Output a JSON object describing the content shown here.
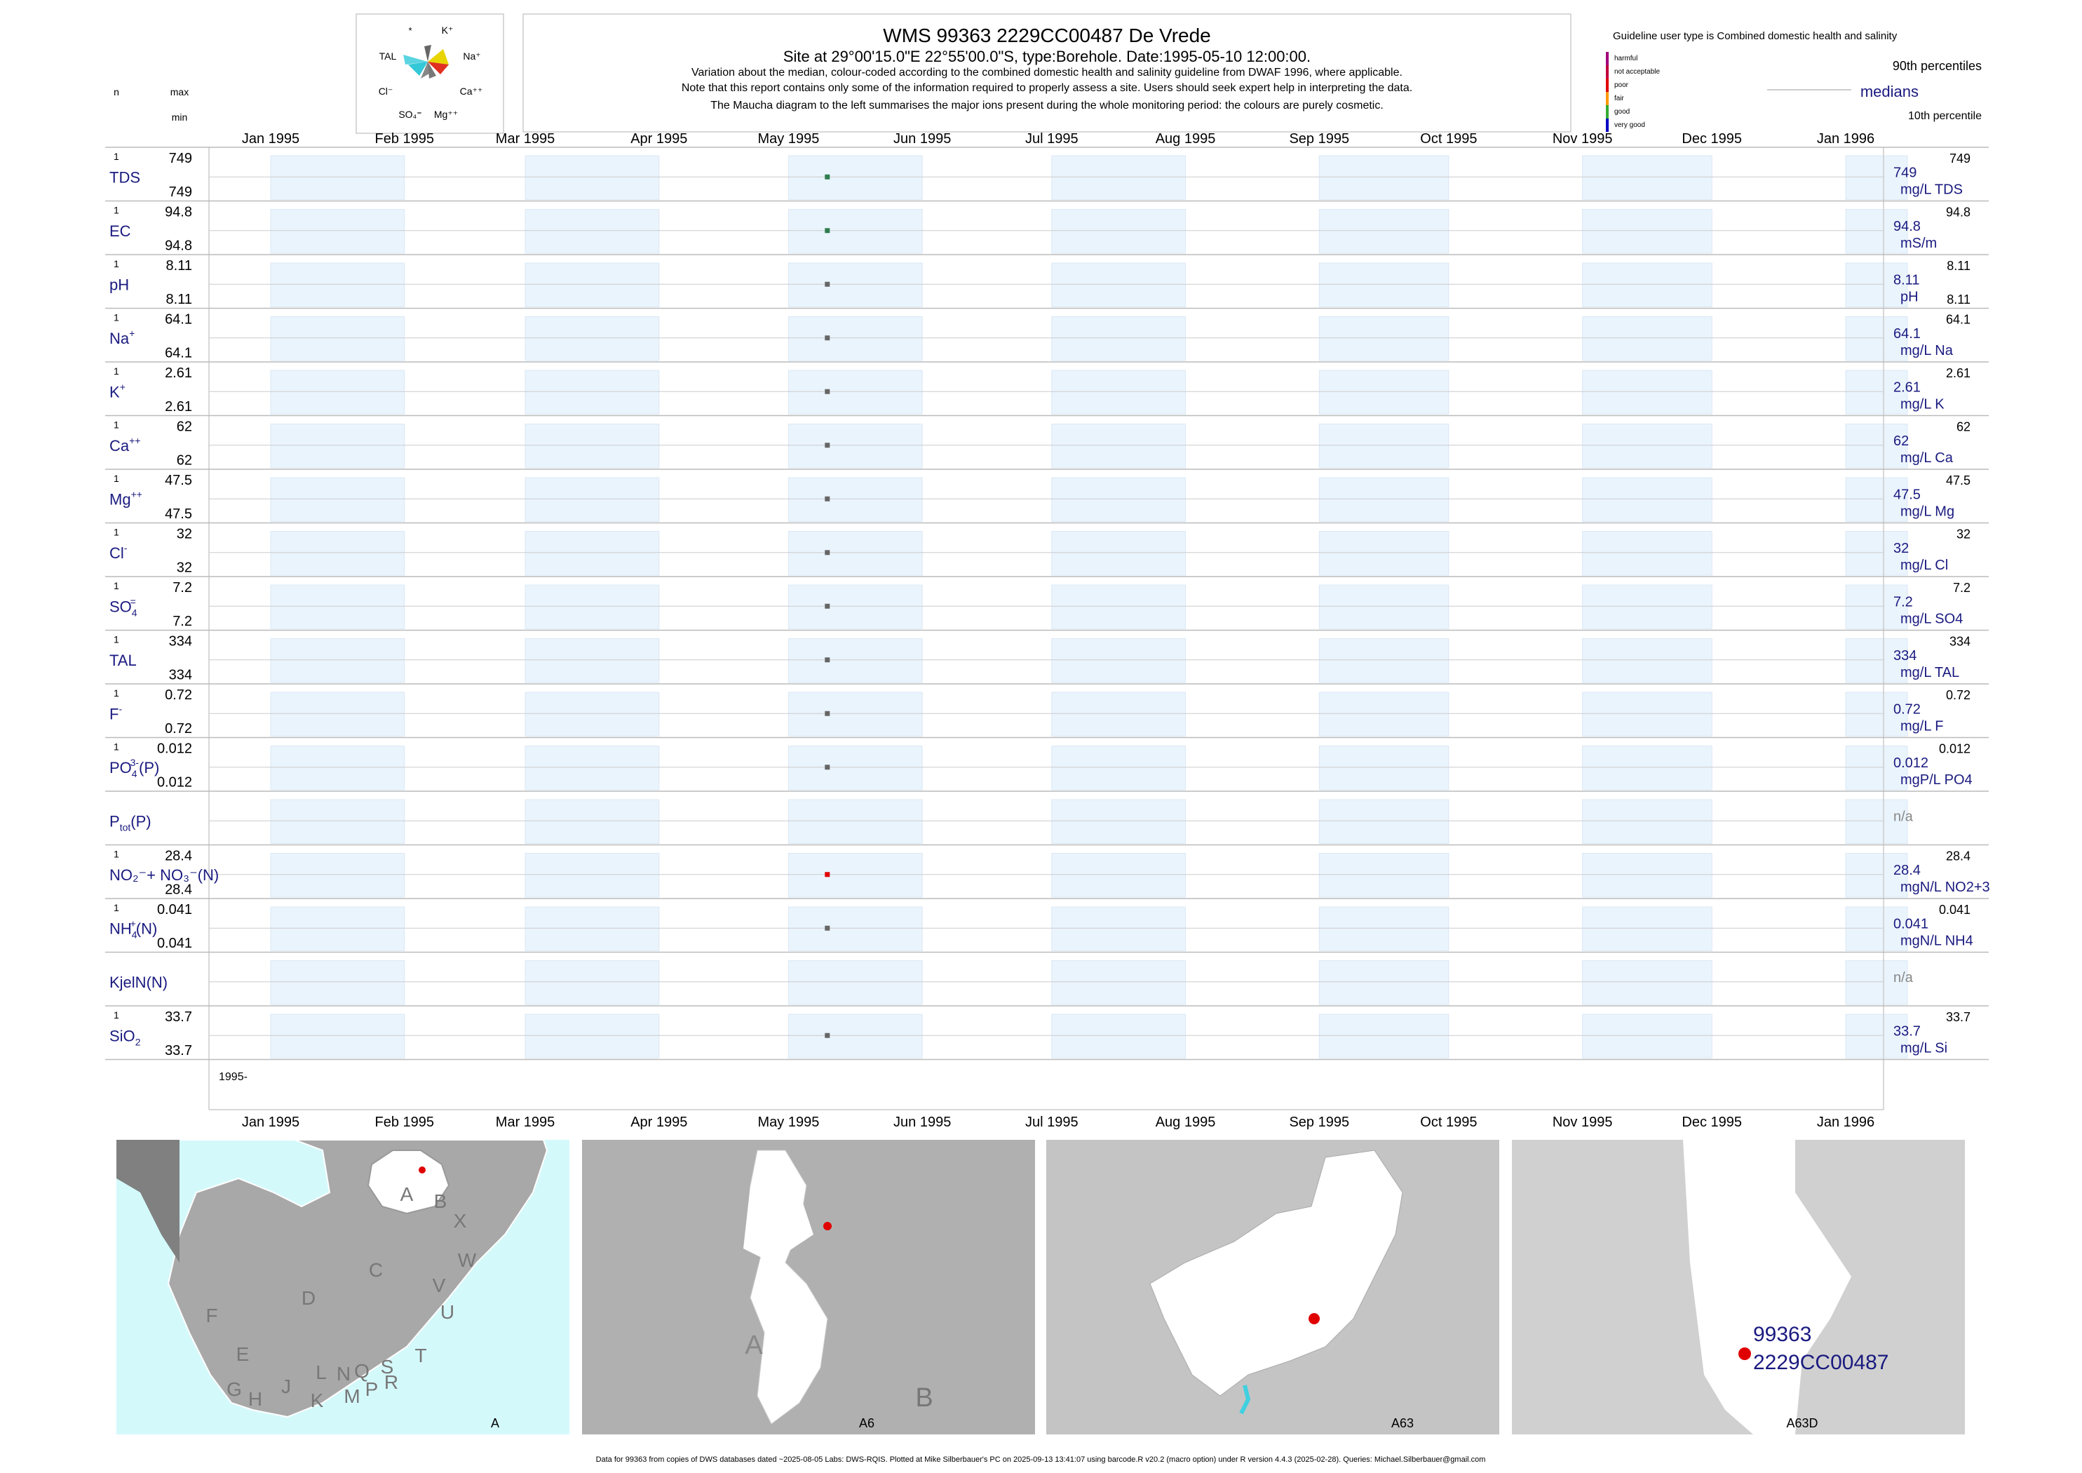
{
  "header": {
    "title": "WMS 99363 2229CC00487 De Vrede",
    "site_line": "Site at 29°00'15.0\"E 22°55'00.0\"S, type:Borehole. Date:1995-05-10 12:00:00.",
    "note1": "Variation about the median,  colour-coded according to the combined domestic health and salinity guideline from DWAF 1996, where applicable.",
    "note2": "Note that this report contains only some of the information required to properly assess a site. Users should seek expert help in interpreting the data.",
    "note3": "The Maucha diagram to the left summarises the major ions present during the whole monitoring period: the colours are purely cosmetic."
  },
  "left_header": {
    "n": "n",
    "max": "max",
    "min": "min"
  },
  "legend": {
    "guideline": "Guideline user type is Combined domestic health and salinity",
    "classes": [
      "harmful",
      "not acceptable",
      "poor",
      "fair",
      "good",
      "very good"
    ],
    "class_colors": [
      "#a0007a",
      "#c0003c",
      "#e00000",
      "#ff9900",
      "#33aa33",
      "#0000c0"
    ],
    "p90": "90th percentiles",
    "medians": "medians",
    "p10": "10th percentile"
  },
  "maucha": {
    "labels": [
      "*",
      "K⁺",
      "TAL",
      "Na⁺",
      "Cl⁻",
      "Ca⁺⁺",
      "SO₄⁼",
      "Mg⁺⁺"
    ]
  },
  "chart_data": {
    "type": "scatter",
    "x_ticks": [
      "Jan 1995",
      "Feb 1995",
      "Mar 1995",
      "Apr 1995",
      "May 1995",
      "Jun 1995",
      "Jul 1995",
      "Aug 1995",
      "Sep 1995",
      "Oct 1995",
      "Nov 1995",
      "Dec 1995",
      "Jan 1996"
    ],
    "xlim": [
      "1995-01-01",
      "1996-01-01"
    ],
    "bottom_year_label": "1995-",
    "series": [
      {
        "label": "TDS",
        "sup": "",
        "sub": "",
        "n": "1",
        "max": "749",
        "min": "749",
        "x": "1995-05-10",
        "y": 749,
        "median": "749",
        "unit": "mg/L TDS",
        "p90": "749",
        "p10": "",
        "color": "#2e7d4f"
      },
      {
        "label": "EC",
        "sup": "",
        "sub": "",
        "n": "1",
        "max": "94.8",
        "min": "94.8",
        "x": "1995-05-10",
        "y": 94.8,
        "median": "94.8",
        "unit": "mS/m",
        "p90": "94.8",
        "p10": "",
        "color": "#2e7d4f"
      },
      {
        "label": "pH",
        "sup": "",
        "sub": "",
        "n": "1",
        "max": "8.11",
        "min": "8.11",
        "x": "1995-05-10",
        "y": 8.11,
        "median": "8.11",
        "unit": "pH",
        "p90": "8.11",
        "p10": "8.11",
        "color": "#666666"
      },
      {
        "label": "Na",
        "sup": "+",
        "sub": "",
        "n": "1",
        "max": "64.1",
        "min": "64.1",
        "x": "1995-05-10",
        "y": 64.1,
        "median": "64.1",
        "unit": "mg/L Na",
        "p90": "64.1",
        "p10": "",
        "color": "#666666"
      },
      {
        "label": "K",
        "sup": "+",
        "sub": "",
        "n": "1",
        "max": "2.61",
        "min": "2.61",
        "x": "1995-05-10",
        "y": 2.61,
        "median": "2.61",
        "unit": "mg/L K",
        "p90": "2.61",
        "p10": "",
        "color": "#666666"
      },
      {
        "label": "Ca",
        "sup": "++",
        "sub": "",
        "n": "1",
        "max": "62",
        "min": "62",
        "x": "1995-05-10",
        "y": 62,
        "median": "62",
        "unit": "mg/L Ca",
        "p90": "62",
        "p10": "",
        "color": "#666666"
      },
      {
        "label": "Mg",
        "sup": "++",
        "sub": "",
        "n": "1",
        "max": "47.5",
        "min": "47.5",
        "x": "1995-05-10",
        "y": 47.5,
        "median": "47.5",
        "unit": "mg/L Mg",
        "p90": "47.5",
        "p10": "",
        "color": "#666666"
      },
      {
        "label": "Cl",
        "sup": "-",
        "sub": "",
        "n": "1",
        "max": "32",
        "min": "32",
        "x": "1995-05-10",
        "y": 32,
        "median": "32",
        "unit": "mg/L Cl",
        "p90": "32",
        "p10": "",
        "color": "#666666"
      },
      {
        "label": "SO",
        "sup": "=",
        "sub": "4",
        "n": "1",
        "max": "7.2",
        "min": "7.2",
        "x": "1995-05-10",
        "y": 7.2,
        "median": "7.2",
        "unit": "mg/L SO4",
        "p90": "7.2",
        "p10": "",
        "color": "#666666"
      },
      {
        "label": "TAL",
        "sup": "",
        "sub": "",
        "n": "1",
        "max": "334",
        "min": "334",
        "x": "1995-05-10",
        "y": 334,
        "median": "334",
        "unit": "mg/L TAL",
        "p90": "334",
        "p10": "",
        "color": "#666666"
      },
      {
        "label": "F",
        "sup": "-",
        "sub": "",
        "n": "1",
        "max": "0.72",
        "min": "0.72",
        "x": "1995-05-10",
        "y": 0.72,
        "median": "0.72",
        "unit": "mg/L F",
        "p90": "0.72",
        "p10": "",
        "color": "#666666"
      },
      {
        "label": "PO",
        "sup": "3-",
        "sub": "4",
        "tail": "(P)",
        "n": "1",
        "max": "0.012",
        "min": "0.012",
        "x": "1995-05-10",
        "y": 0.012,
        "median": "0.012",
        "unit": "mgP/L PO4",
        "p90": "0.012",
        "p10": "",
        "color": "#666666"
      },
      {
        "label": "P",
        "sup": "",
        "sub": "tot",
        "tail": "(P)",
        "n": "",
        "max": "",
        "min": "",
        "x": null,
        "y": null,
        "median": "n/a",
        "unit": "",
        "p90": "",
        "p10": "",
        "color": "#666666"
      },
      {
        "label": "NO₂⁻+ NO₃⁻(N)",
        "sup": "",
        "sub": "",
        "n": "1",
        "max": "28.4",
        "min": "28.4",
        "x": "1995-05-10",
        "y": 28.4,
        "median": "28.4",
        "unit": "mgN/L NO2+3",
        "p90": "28.4",
        "p10": "",
        "color": "#e00000"
      },
      {
        "label": "NH",
        "sup": "+",
        "sub": "4",
        "tail": "(N)",
        "n": "1",
        "max": "0.041",
        "min": "0.041",
        "x": "1995-05-10",
        "y": 0.041,
        "median": "0.041",
        "unit": "mgN/L NH4",
        "p90": "0.041",
        "p10": "",
        "color": "#666666"
      },
      {
        "label": "KjelN(N)",
        "sup": "",
        "sub": "",
        "n": "",
        "max": "",
        "min": "",
        "x": null,
        "y": null,
        "median": "n/a",
        "unit": "",
        "p90": "",
        "p10": "",
        "color": "#666666"
      },
      {
        "label": "SiO",
        "sup": "",
        "sub": "2",
        "n": "1",
        "max": "33.7",
        "min": "33.7",
        "x": "1995-05-10",
        "y": 33.7,
        "median": "33.7",
        "unit": "mg/L Si",
        "p90": "33.7",
        "p10": "",
        "color": "#666666"
      }
    ]
  },
  "maps": {
    "panel_labels": [
      "A",
      "A6",
      "A63",
      "A63D"
    ],
    "region_letters": [
      "A",
      "B",
      "X",
      "W",
      "C",
      "D",
      "V",
      "U",
      "T",
      "F",
      "E",
      "J",
      "L",
      "N",
      "Q",
      "S",
      "R",
      "G",
      "H",
      "K",
      "M",
      "P"
    ],
    "a6_letters": [
      "A",
      "B"
    ],
    "site_id": "99363",
    "site_code": "2229CC00487"
  },
  "footer": "Data for 99363 from copies of DWS databases dated ~2025-08-05 Labs: DWS-RQIS. Plotted at Mike Silberbauer's PC on 2025-09-13 13:41:07 using barcode.R v20.2 (macro option) under R version 4.4.3 (2025-02-28). Queries: Michael.Silberbauer@gmail.com"
}
